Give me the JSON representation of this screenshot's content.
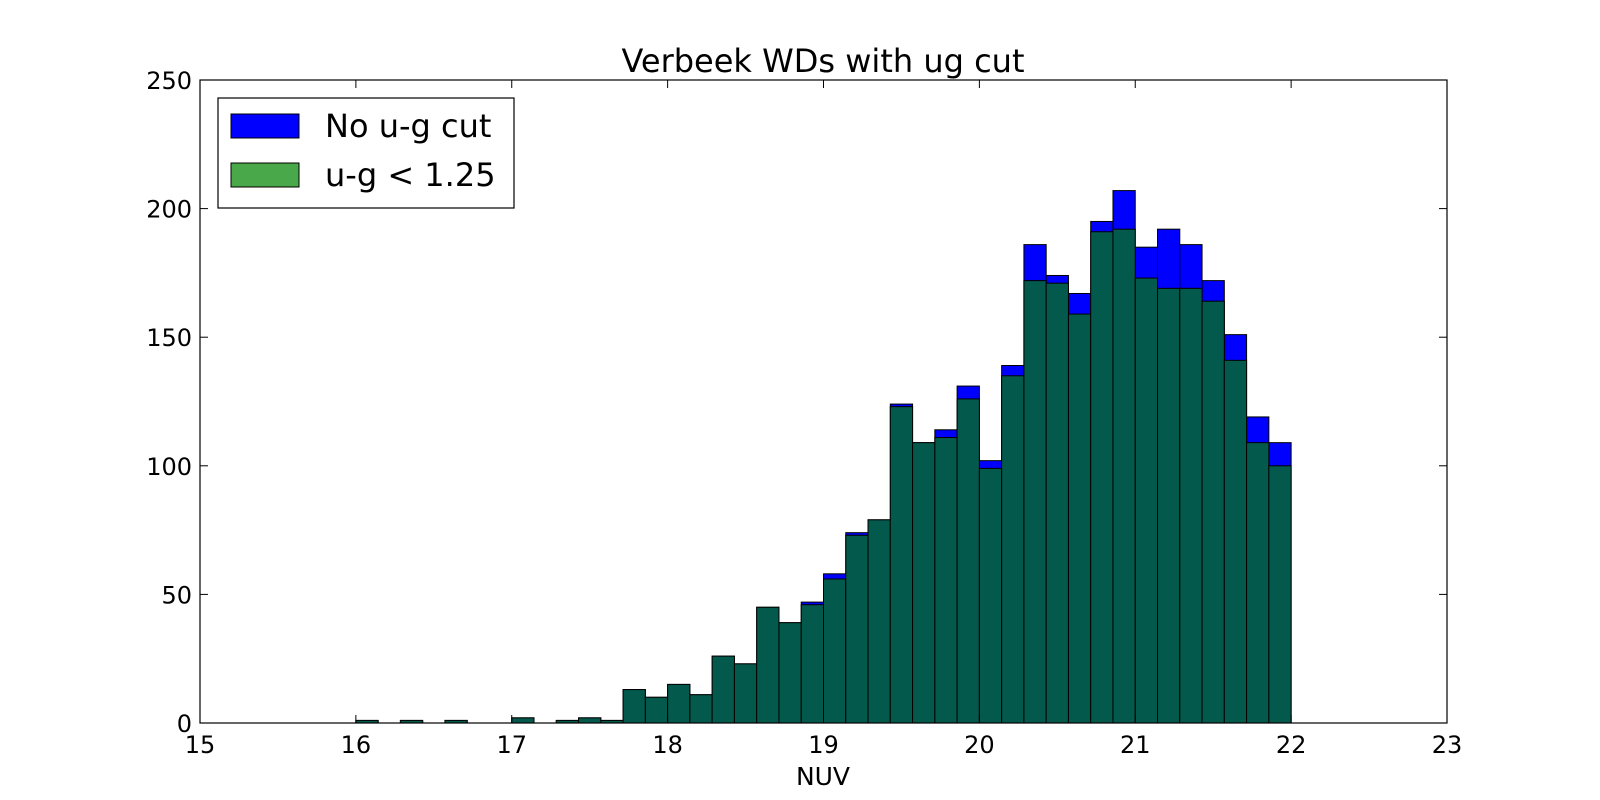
{
  "chart_data": {
    "type": "bar",
    "title": "Verbeek WDs with ug cut",
    "xlabel": "NUV",
    "ylabel": "",
    "xlim": [
      15,
      23
    ],
    "ylim": [
      0,
      250
    ],
    "xticks": [
      "15",
      "16",
      "17",
      "18",
      "19",
      "20",
      "21",
      "22",
      "23"
    ],
    "yticks": [
      "0",
      "50",
      "100",
      "150",
      "200",
      "250"
    ],
    "grid": false,
    "legend_position": "top-left",
    "bins": {
      "start": 15.0,
      "width": 0.142857
    },
    "series": [
      {
        "name": "No u-g cut",
        "color": "#0000ff",
        "values": [
          0,
          0,
          0,
          0,
          0,
          0,
          0,
          1,
          0,
          1,
          0,
          1,
          0,
          0,
          2,
          0,
          1,
          2,
          1,
          13,
          10,
          15,
          11,
          26,
          23,
          45,
          39,
          47,
          58,
          74,
          79,
          124,
          109,
          114,
          131,
          102,
          139,
          186,
          174,
          167,
          195,
          207,
          185,
          192,
          186,
          172,
          151,
          119,
          109
        ]
      },
      {
        "name": "u-g < 1.25",
        "color": "#008000",
        "values": [
          0,
          0,
          0,
          0,
          0,
          0,
          0,
          1,
          0,
          1,
          0,
          1,
          0,
          0,
          2,
          0,
          1,
          2,
          1,
          13,
          10,
          15,
          11,
          26,
          23,
          45,
          39,
          46,
          56,
          73,
          79,
          123,
          109,
          111,
          126,
          99,
          135,
          172,
          171,
          159,
          191,
          192,
          173,
          169,
          169,
          164,
          141,
          109,
          100
        ]
      }
    ],
    "overlap_color": "#03594c"
  }
}
